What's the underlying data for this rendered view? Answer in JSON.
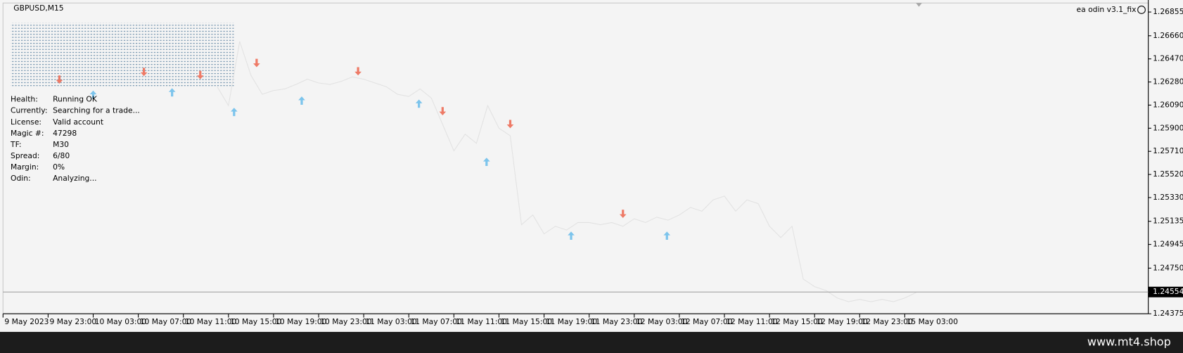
{
  "chart_data": {
    "type": "line",
    "title": "GBPUSD,M15",
    "indicator": "ea odin v3.1_fix",
    "categories": [
      "9 May 2023",
      null,
      null,
      null,
      "9 May 23:00",
      null,
      null,
      null,
      "10 May 03:00",
      null,
      null,
      null,
      "10 May 07:00",
      null,
      null,
      null,
      "10 May 11:00",
      null,
      null,
      null,
      "10 May 15:00",
      null,
      null,
      null,
      "10 May 19:00",
      null,
      null,
      null,
      "10 May 23:00",
      null,
      null,
      null,
      "11 May 03:00",
      null,
      null,
      null,
      "11 May 07:00",
      null,
      null,
      null,
      "11 May 11:00",
      null,
      null,
      null,
      "11 May 15:00",
      null,
      null,
      null,
      "11 May 19:00",
      null,
      null,
      null,
      "11 May 23:00",
      null,
      null,
      null,
      "12 May 03:00",
      null,
      null,
      null,
      "12 May 07:00",
      null,
      null,
      null,
      "12 May 11:00",
      null,
      null,
      null,
      "12 May 15:00",
      null,
      null,
      null,
      "12 May 19:00",
      null,
      null,
      null,
      "12 May 23:00",
      null,
      null,
      null,
      "15 May 03:00",
      null
    ],
    "values": [
      null,
      null,
      null,
      null,
      null,
      null,
      null,
      null,
      null,
      null,
      null,
      null,
      null,
      null,
      null,
      null,
      null,
      null,
      null,
      1.26241,
      1.26086,
      1.26613,
      1.26334,
      1.26179,
      1.2621,
      1.26223,
      1.2626,
      1.26303,
      1.26272,
      1.2626,
      1.26285,
      1.26322,
      1.26303,
      1.26272,
      1.26241,
      1.26179,
      1.26161,
      1.26223,
      1.26148,
      1.25931,
      1.25714,
      1.25851,
      1.25776,
      1.26086,
      1.259,
      1.25838,
      1.25107,
      1.25187,
      1.25032,
      1.25094,
      1.25063,
      1.25125,
      1.25125,
      1.25107,
      1.25125,
      1.25094,
      1.25156,
      1.25125,
      1.25169,
      1.25144,
      1.25187,
      1.25249,
      1.25218,
      1.25311,
      1.25342,
      1.25218,
      1.25311,
      1.2528,
      1.25094,
      1.25001,
      1.25094,
      1.2466,
      1.24598,
      1.24567,
      1.24505,
      1.24474,
      1.24493,
      1.24474,
      1.24493,
      1.24474,
      1.24505,
      1.24549
    ],
    "color": "#e2e2e2",
    "current_price": 1.24554,
    "ylim": [
      1.24375,
      1.26929
    ],
    "yticks": [
      1.26855,
      {
        "value": 1.2666,
        "label": "1.26660"
      },
      {
        "value": 1.2647,
        "label": "1.26470"
      },
      {
        "value": 1.2628,
        "label": "1.26280"
      },
      {
        "value": 1.2609,
        "label": "1.26090"
      },
      {
        "value": 1.259,
        "label": "1.25900"
      },
      {
        "value": 1.2571,
        "label": "1.25710"
      },
      {
        "value": 1.2552,
        "label": "1.25520"
      },
      {
        "value": 1.2533,
        "label": "1.25330"
      },
      1.25135,
      1.24945,
      {
        "value": 1.2475,
        "label": "1.24750"
      },
      1.24375
    ],
    "up_arrows": {
      "color": "#7cc4ec",
      "x": [
        8,
        15,
        20.5,
        26.5,
        36.9,
        42.9,
        50.4,
        58.9
      ],
      "values": [
        1.26179,
        1.26198,
        1.26037,
        1.2613,
        1.26105,
        1.25627,
        1.2502,
        1.2502
      ]
    },
    "down_arrows": {
      "color": "#ee7a66",
      "x": [
        5,
        12.5,
        17.5,
        22.5,
        31.5,
        39,
        45,
        55
      ],
      "values": [
        1.26297,
        1.26359,
        1.26334,
        1.26433,
        1.26365,
        1.26037,
        1.25931,
        1.25193
      ]
    }
  },
  "panel": {
    "rows": [
      [
        "Health:",
        "Running OK"
      ],
      [
        "Currently:",
        "Searching for a trade..."
      ],
      [
        "License:",
        "Valid account"
      ],
      [
        "Magic #:",
        "47298"
      ],
      [
        "TF:",
        "M30"
      ],
      [
        "Spread:",
        "6/80"
      ],
      [
        "Margin:",
        "0%"
      ],
      [
        "Odin:",
        "Analyzing..."
      ]
    ]
  },
  "footer": "www.mt4.shop"
}
